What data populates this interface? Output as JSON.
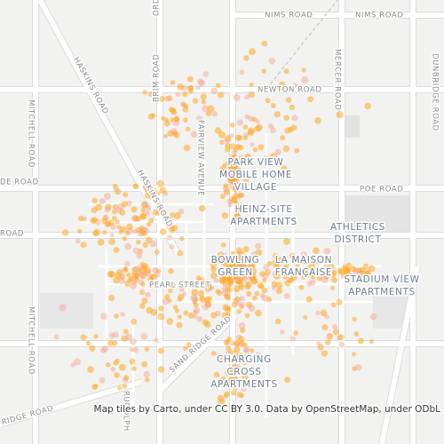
{
  "roads": {
    "nims_1": "NIMS ROAD",
    "nims_2": "NIMS ROAD",
    "newton": "NEWTON ROAD",
    "mercer": "MERCER ROAD",
    "dunbridge": "DUNBRIDGE ROAD",
    "haskins_1": "HASKINS ROAD",
    "haskins_2": "HASKINS ROAD",
    "mitchell_1": "MITCHELL ROAD",
    "mitchell_2": "MITCHELL ROAD",
    "brim": "BRIM ROAD",
    "top_cut": "ORD",
    "fairview": "FAIRVIEW AVENUE",
    "poe": "POE ROAD",
    "west_1": "DE ROAD",
    "west_2": "ROAD",
    "pearl": "PEARL STREET",
    "sand_ridge": "SAND RIDGE ROAD",
    "rudolph": "RUDOLPH",
    "ridge": "RIDGE ROAD"
  },
  "places": {
    "park_view": [
      "PARK VIEW",
      "MOBILE HOME",
      "VILLAGE"
    ],
    "heinz": [
      "HEINZ-SITE",
      "APARTMENTS"
    ],
    "athletics": [
      "ATHLETICS",
      "DISTRICT"
    ],
    "bowling_green": [
      "BOWLING",
      "GREEN"
    ],
    "la_maison": [
      "LA MAISON",
      "FRANÇAISE"
    ],
    "stadium_view": [
      "STADIUM VIEW",
      "APARTMENTS"
    ],
    "charging_cross": [
      "CHARGING",
      "CROSS",
      "APARTMENTS"
    ]
  },
  "attribution": "Map tiles by Carto, under CC BY 3.0. Data by OpenStreetMap, under ODbL"
}
